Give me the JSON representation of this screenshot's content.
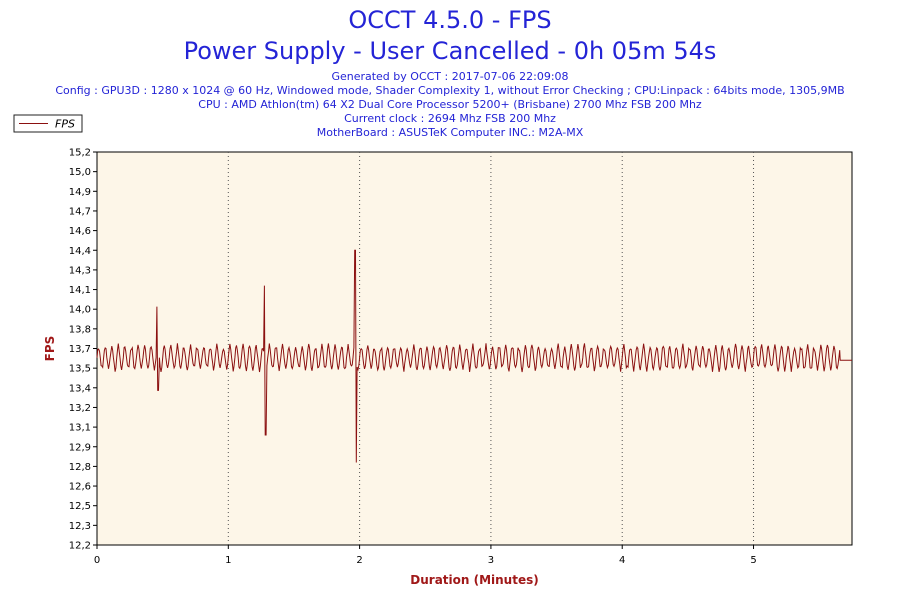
{
  "header": {
    "title": "OCCT 4.5.0 - FPS",
    "subtitle": "Power Supply - User Cancelled - 0h 05m 54s",
    "info_lines": [
      "Generated by OCCT : 2017-07-06 22:09:08",
      "Config : GPU3D : 1280 x 1024 @ 60 Hz, Windowed mode, Shader Complexity 1, without Error Checking ; CPU:Linpack : 64bits mode, 1305,9MB",
      "CPU : AMD Athlon(tm) 64 X2 Dual Core Processor 5200+ (Brisbane) 2700 Mhz FSB 200 Mhz",
      "Current clock : 2694 Mhz FSB 200 Mhz",
      "MotherBoard : ASUSTeK Computer INC.: M2A-MX"
    ]
  },
  "colors": {
    "title": "#2424d6",
    "axis_label": "#a01818",
    "series": "#8b1010",
    "plot_bg": "#fdf6e8"
  },
  "chart_data": {
    "type": "line",
    "title": "OCCT 4.5.0 - FPS",
    "subtitle": "Power Supply - User Cancelled - 0h 05m 54s",
    "xlabel": "Duration (Minutes)",
    "ylabel": "FPS",
    "xlim": [
      0,
      5.75
    ],
    "ylim": [
      12.2,
      15.2
    ],
    "x_ticks": [
      "0",
      "1",
      "2",
      "3",
      "4",
      "5"
    ],
    "y_ticks": [
      "12,2",
      "12,3",
      "12,5",
      "12,6",
      "12,8",
      "12,9",
      "13,1",
      "13,2",
      "13,4",
      "13,5",
      "13,7",
      "13,8",
      "14,0",
      "14,1",
      "14,3",
      "14,4",
      "14,6",
      "14,7",
      "14,9",
      "15,0",
      "15,2"
    ],
    "grid": "vertical dotted",
    "legend_position": "top-left",
    "series": [
      {
        "name": "FPS",
        "baseline": 13.63,
        "oscillation_amplitude": 0.1,
        "oscillation_period_minutes": 0.05,
        "spikes": [
          {
            "x": 0.46,
            "low": 13.38,
            "high": 14.02
          },
          {
            "x": 1.28,
            "low": 13.04,
            "high": 14.18
          },
          {
            "x": 1.97,
            "low": 12.83,
            "high": 14.45
          }
        ],
        "end_x": 5.66,
        "end_value": 13.61
      }
    ]
  }
}
